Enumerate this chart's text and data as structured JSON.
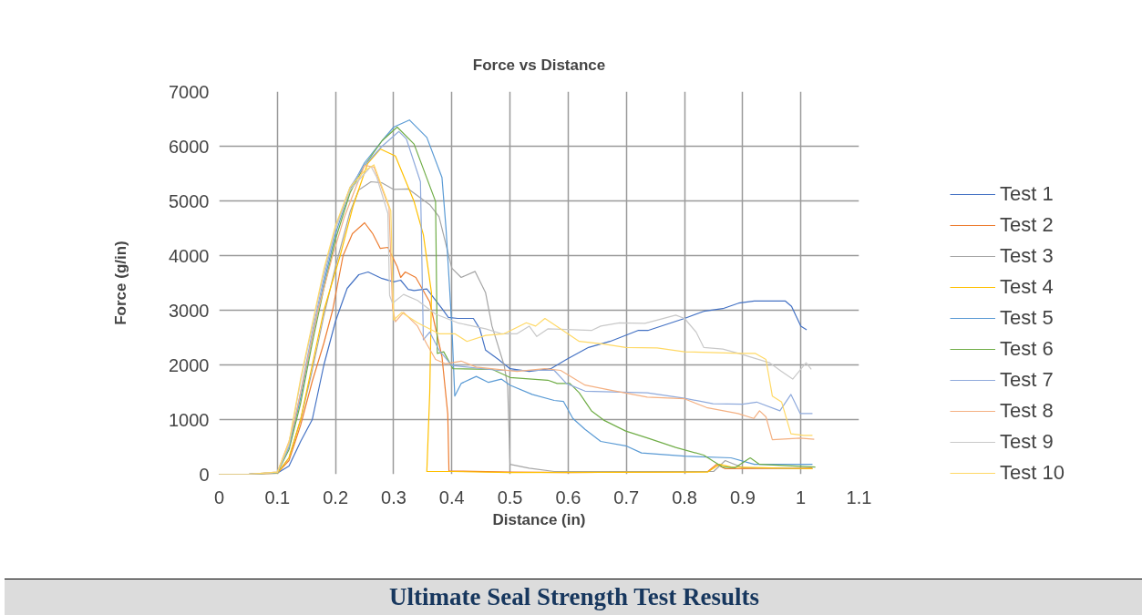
{
  "chart_data": {
    "type": "line",
    "title": "Force vs Distance",
    "xlabel": "Distance (in)",
    "ylabel": "Force (g/in)",
    "xlim": [
      0,
      1.1
    ],
    "xticks": [
      0,
      0.1,
      0.2,
      0.3,
      0.4,
      0.5,
      0.6,
      0.7,
      0.8,
      0.9,
      1,
      1.1
    ],
    "ylim": [
      0,
      7000
    ],
    "yticks": [
      0,
      1000,
      2000,
      3000,
      4000,
      5000,
      6000,
      7000
    ],
    "grid": true,
    "legend": "right",
    "annotations": [
      "Ultimate Seal Strength Test Results"
    ],
    "series": [
      {
        "name": "Test 1",
        "color": "#4472c4",
        "x": [
          0,
          0.05,
          0.1,
          0.12,
          0.14,
          0.16,
          0.18,
          0.2,
          0.22,
          0.24,
          0.256,
          0.28,
          0.3,
          0.312,
          0.325,
          0.335,
          0.357,
          0.383,
          0.394,
          0.41,
          0.437,
          0.448,
          0.458,
          0.48,
          0.5,
          0.533,
          0.57,
          0.597,
          0.635,
          0.672,
          0.72,
          0.737,
          0.8,
          0.833,
          0.866,
          0.893,
          0.92,
          0.973,
          0.984,
          1.0,
          1.01
        ],
        "values": [
          0,
          0,
          20,
          150,
          600,
          1000,
          2000,
          2800,
          3400,
          3650,
          3700,
          3580,
          3520,
          3550,
          3380,
          3360,
          3390,
          3030,
          2870,
          2850,
          2850,
          2660,
          2270,
          2100,
          1930,
          1880,
          1930,
          2100,
          2320,
          2430,
          2630,
          2630,
          2850,
          2980,
          3030,
          3130,
          3170,
          3170,
          3070,
          2710,
          2640
        ]
      },
      {
        "name": "Test 2",
        "color": "#ed7d31",
        "x": [
          0,
          0.05,
          0.1,
          0.12,
          0.14,
          0.16,
          0.18,
          0.195,
          0.213,
          0.229,
          0.25,
          0.264,
          0.277,
          0.29,
          0.306,
          0.312,
          0.32,
          0.338,
          0.362,
          0.383,
          0.393,
          0.395,
          0.5,
          0.6,
          0.84,
          0.855,
          0.87,
          1.02
        ],
        "values": [
          0,
          0,
          20,
          250,
          900,
          1700,
          2400,
          3000,
          4000,
          4400,
          4600,
          4400,
          4130,
          4150,
          3800,
          3600,
          3700,
          3600,
          3150,
          2150,
          1100,
          60,
          40,
          30,
          50,
          180,
          100,
          110
        ]
      },
      {
        "name": "Test 3",
        "color": "#a5a5a5",
        "x": [
          0,
          0.05,
          0.1,
          0.12,
          0.14,
          0.16,
          0.18,
          0.2,
          0.225,
          0.24,
          0.261,
          0.28,
          0.3,
          0.325,
          0.362,
          0.378,
          0.4,
          0.416,
          0.44,
          0.458,
          0.469,
          0.49,
          0.496,
          0.5,
          0.533,
          0.576,
          0.85,
          0.87,
          0.9,
          1.02
        ],
        "values": [
          0,
          0,
          20,
          300,
          1000,
          1900,
          2900,
          3800,
          4800,
          5200,
          5350,
          5330,
          5210,
          5220,
          4930,
          4710,
          3770,
          3600,
          3710,
          3320,
          2710,
          1990,
          1600,
          180,
          110,
          50,
          50,
          250,
          120,
          100
        ]
      },
      {
        "name": "Test 4",
        "color": "#ffc000",
        "x": [
          0,
          0.05,
          0.1,
          0.12,
          0.14,
          0.16,
          0.18,
          0.208,
          0.23,
          0.255,
          0.277,
          0.303,
          0.335,
          0.351,
          0.365,
          0.362,
          0.357,
          0.4,
          0.5,
          0.84,
          0.86,
          0.88,
          1.02
        ],
        "values": [
          0,
          0,
          20,
          300,
          1000,
          2000,
          3000,
          4000,
          4900,
          5680,
          5950,
          5820,
          4990,
          4380,
          3320,
          1500,
          50,
          50,
          30,
          40,
          180,
          130,
          100
        ]
      },
      {
        "name": "Test 5",
        "color": "#5b9bd5",
        "x": [
          0,
          0.05,
          0.1,
          0.12,
          0.14,
          0.16,
          0.18,
          0.2,
          0.225,
          0.25,
          0.28,
          0.3,
          0.327,
          0.357,
          0.383,
          0.39,
          0.4,
          0.405,
          0.416,
          0.442,
          0.463,
          0.485,
          0.5,
          0.538,
          0.576,
          0.592,
          0.608,
          0.629,
          0.656,
          0.699,
          0.726,
          0.8,
          0.88,
          0.92,
          1.02
        ],
        "values": [
          0,
          0,
          30,
          500,
          1400,
          2500,
          3500,
          4400,
          5200,
          5700,
          6100,
          6350,
          6480,
          6160,
          5430,
          4490,
          2710,
          1430,
          1660,
          1790,
          1680,
          1740,
          1630,
          1460,
          1350,
          1330,
          1020,
          820,
          600,
          520,
          390,
          330,
          300,
          180,
          180
        ]
      },
      {
        "name": "Test 6",
        "color": "#70ad47",
        "x": [
          0,
          0.05,
          0.1,
          0.12,
          0.14,
          0.16,
          0.18,
          0.2,
          0.225,
          0.25,
          0.28,
          0.306,
          0.335,
          0.372,
          0.375,
          0.386,
          0.402,
          0.469,
          0.5,
          0.565,
          0.581,
          0.603,
          0.619,
          0.64,
          0.661,
          0.699,
          0.737,
          0.785,
          0.833,
          0.849,
          0.866,
          0.887,
          0.913,
          0.929,
          1.025
        ],
        "values": [
          0,
          0,
          30,
          450,
          1300,
          2400,
          3400,
          4300,
          5150,
          5650,
          6100,
          6350,
          6040,
          4990,
          2210,
          2240,
          1930,
          1920,
          1770,
          1720,
          1660,
          1660,
          1490,
          1160,
          990,
          790,
          660,
          490,
          350,
          240,
          130,
          120,
          300,
          180,
          130
        ]
      },
      {
        "name": "Test 7",
        "color": "#8faadc",
        "x": [
          0,
          0.05,
          0.1,
          0.12,
          0.14,
          0.16,
          0.18,
          0.2,
          0.225,
          0.25,
          0.28,
          0.309,
          0.322,
          0.346,
          0.351,
          0.362,
          0.378,
          0.4,
          0.48,
          0.576,
          0.597,
          0.629,
          0.736,
          0.8,
          0.849,
          0.9,
          0.924,
          0.964,
          0.983,
          0.999,
          1.02
        ],
        "values": [
          0,
          0,
          30,
          500,
          1500,
          2600,
          3600,
          4500,
          5250,
          5650,
          6000,
          6270,
          6130,
          5350,
          2460,
          2600,
          2270,
          1990,
          1900,
          1900,
          1660,
          1520,
          1490,
          1390,
          1290,
          1280,
          1320,
          1160,
          1460,
          1110,
          1110
        ]
      },
      {
        "name": "Test 8",
        "color": "#f4b183",
        "x": [
          0,
          0.05,
          0.1,
          0.12,
          0.13,
          0.15,
          0.17,
          0.195,
          0.215,
          0.235,
          0.25,
          0.266,
          0.292,
          0.298,
          0.303,
          0.317,
          0.341,
          0.357,
          0.372,
          0.389,
          0.416,
          0.442,
          0.512,
          0.56,
          0.587,
          0.629,
          0.672,
          0.736,
          0.8,
          0.838,
          0.892,
          0.919,
          0.929,
          0.94,
          0.951,
          0.999,
          1.023
        ],
        "values": [
          0,
          0,
          40,
          600,
          1000,
          2000,
          3000,
          4000,
          4700,
          5250,
          5650,
          5620,
          4880,
          3040,
          2790,
          2960,
          2710,
          2380,
          2100,
          2020,
          2070,
          1960,
          1880,
          1930,
          1900,
          1630,
          1540,
          1410,
          1380,
          1220,
          1110,
          1020,
          1160,
          1050,
          630,
          660,
          640
        ]
      },
      {
        "name": "Test 9",
        "color": "#c9c9c9",
        "x": [
          0,
          0.05,
          0.1,
          0.12,
          0.14,
          0.16,
          0.18,
          0.2,
          0.225,
          0.25,
          0.261,
          0.271,
          0.29,
          0.293,
          0.298,
          0.317,
          0.341,
          0.372,
          0.41,
          0.458,
          0.485,
          0.512,
          0.533,
          0.546,
          0.565,
          0.64,
          0.656,
          0.688,
          0.732,
          0.785,
          0.8,
          0.82,
          0.833,
          0.866,
          0.893,
          0.946,
          0.967,
          0.986,
          1.009,
          1.018
        ],
        "values": [
          0,
          0,
          40,
          550,
          1700,
          2700,
          3700,
          4500,
          5200,
          5500,
          5630,
          5430,
          4770,
          3270,
          3130,
          3290,
          3180,
          2930,
          2770,
          2660,
          2570,
          2570,
          2710,
          2520,
          2660,
          2630,
          2710,
          2770,
          2760,
          2910,
          2850,
          2600,
          2320,
          2290,
          2210,
          2040,
          1880,
          1740,
          2040,
          1920
        ]
      },
      {
        "name": "Test 10",
        "color": "#ffd966",
        "x": [
          0,
          0.05,
          0.1,
          0.12,
          0.14,
          0.16,
          0.18,
          0.2,
          0.225,
          0.25,
          0.266,
          0.295,
          0.3,
          0.314,
          0.341,
          0.378,
          0.405,
          0.426,
          0.458,
          0.49,
          0.528,
          0.544,
          0.56,
          0.587,
          0.619,
          0.661,
          0.699,
          0.753,
          0.8,
          0.898,
          0.922,
          0.94,
          0.951,
          0.967,
          0.983,
          1.005,
          1.02
        ],
        "values": [
          0,
          0,
          40,
          580,
          1750,
          2750,
          3750,
          4550,
          5250,
          5550,
          5660,
          4820,
          2820,
          2960,
          2770,
          2570,
          2570,
          2430,
          2540,
          2570,
          2770,
          2710,
          2850,
          2660,
          2430,
          2380,
          2320,
          2310,
          2240,
          2210,
          2210,
          2100,
          1430,
          1320,
          740,
          710,
          710
        ]
      }
    ]
  }
}
